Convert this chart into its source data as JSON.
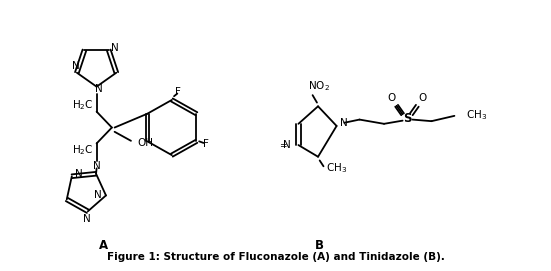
{
  "title": "Figure 1: Structure of Fluconazole (A) and Tinidazole (B).",
  "label_A": "A",
  "label_B": "B",
  "fig_width": 5.51,
  "fig_height": 2.71,
  "dpi": 100,
  "background": "#ffffff",
  "line_color": "#000000",
  "line_width": 1.3,
  "font_size_atom": 7.5,
  "font_size_caption": 7.5
}
